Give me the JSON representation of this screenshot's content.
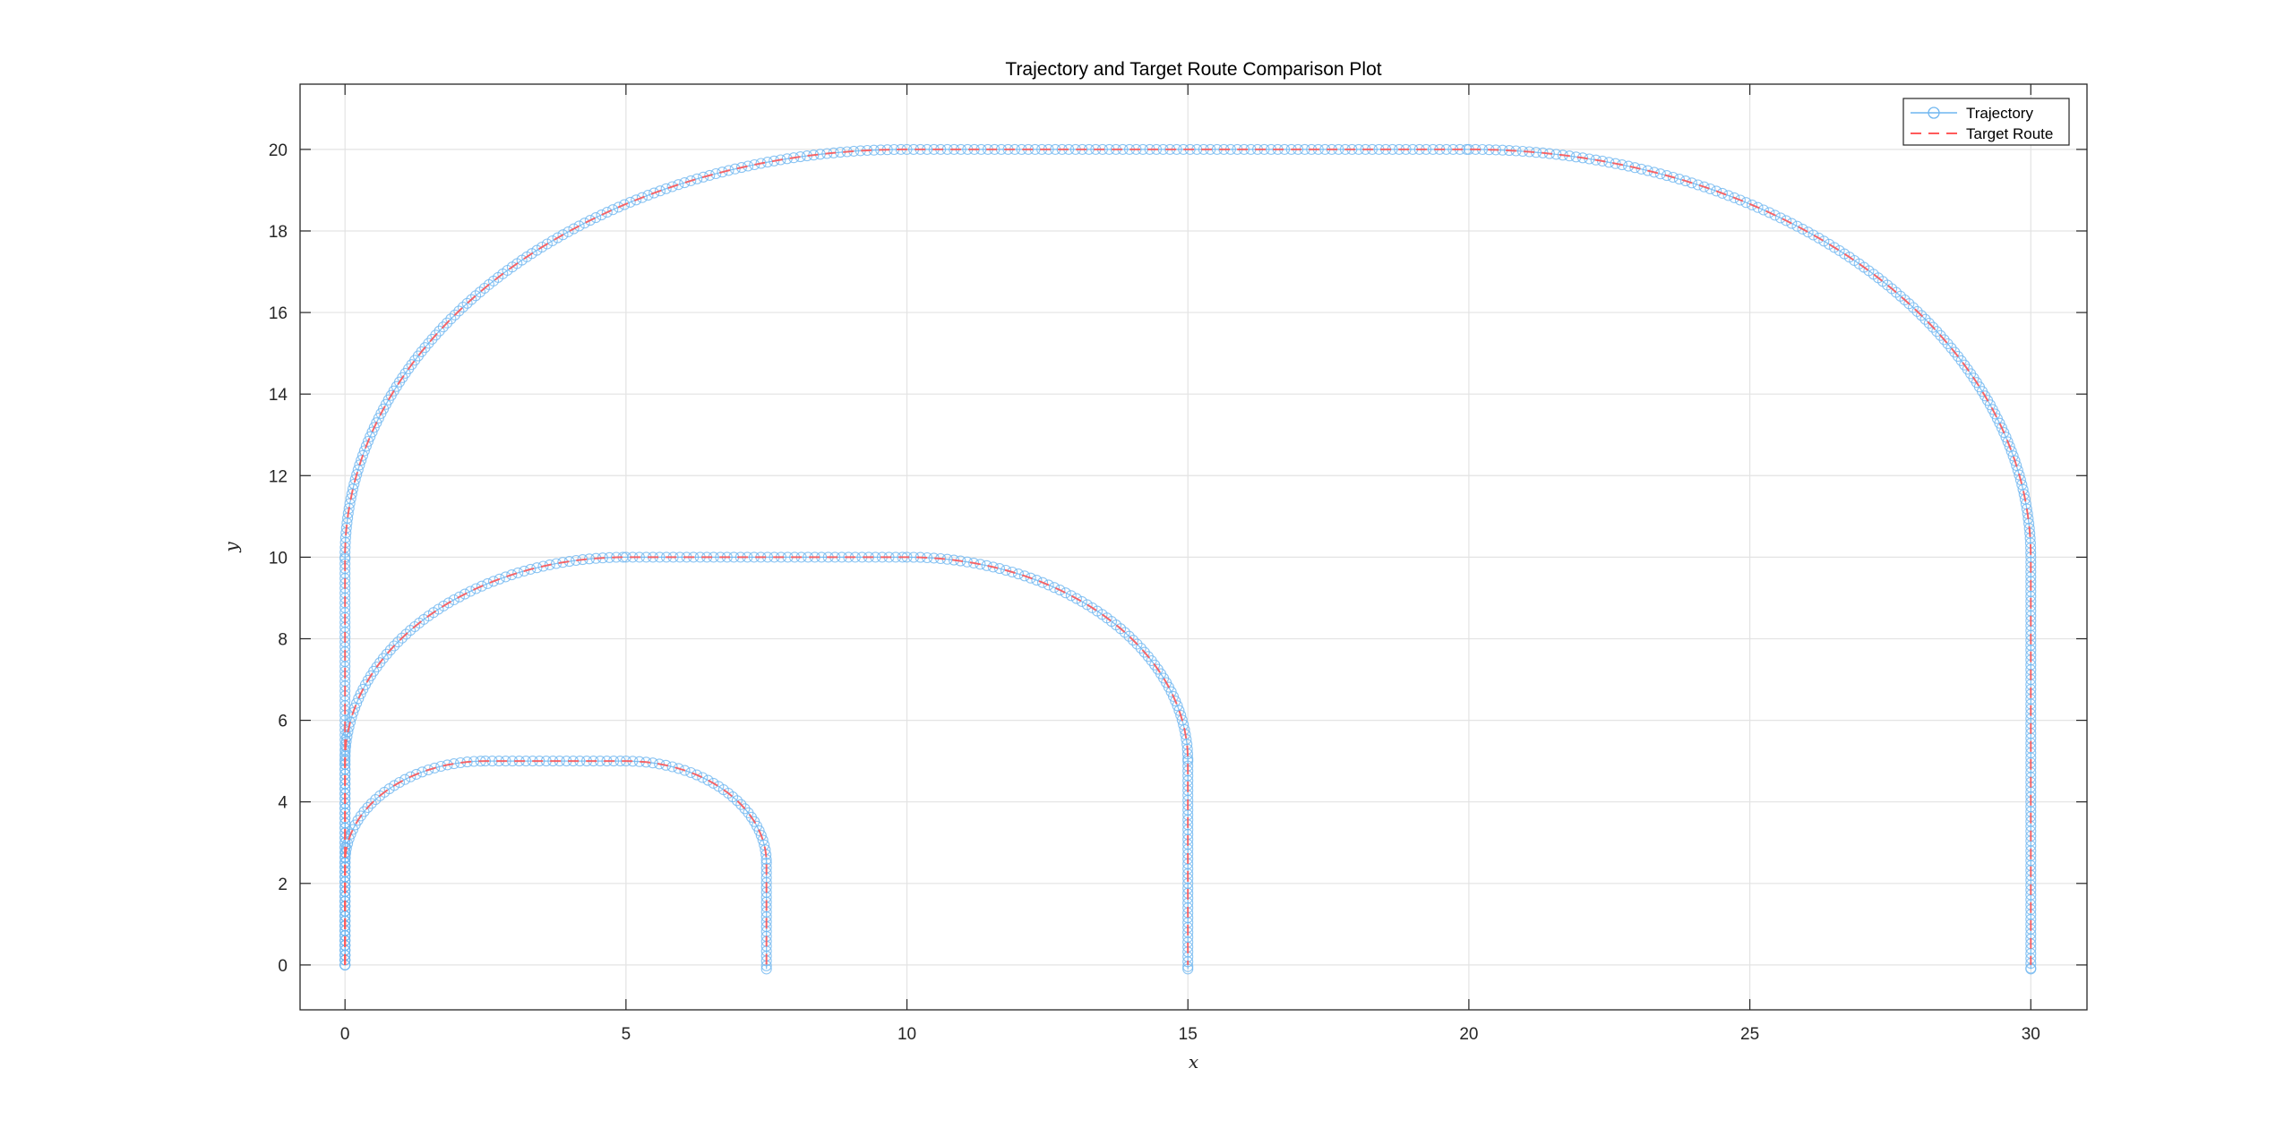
{
  "chart_data": {
    "type": "line",
    "title": "Trajectory and Target Route Comparison Plot",
    "xlabel": "x",
    "ylabel": "y",
    "xlim": [
      -0.8,
      31
    ],
    "ylim": [
      -1.1,
      21.6
    ],
    "xticks": [
      0,
      5,
      10,
      15,
      20,
      25,
      30
    ],
    "yticks": [
      0,
      2,
      4,
      6,
      8,
      10,
      12,
      14,
      16,
      18,
      20
    ],
    "grid": true,
    "legend_position": "top-right",
    "series": [
      {
        "name": "Trajectory",
        "style": "solid line with circle markers",
        "color": "#6fb6f0",
        "paths": [
          [
            [
              0,
              0
            ],
            [
              0,
              2.5
            ],
            [
              0.732,
              4.268
            ],
            [
              2.5,
              5
            ],
            [
              5,
              5
            ],
            [
              6.768,
              4.268
            ],
            [
              7.5,
              2.5
            ],
            [
              7.5,
              -0.1
            ]
          ],
          [
            [
              0,
              0
            ],
            [
              0,
              5
            ],
            [
              1.464,
              8.536
            ],
            [
              5,
              10
            ],
            [
              10,
              10
            ],
            [
              13.536,
              8.536
            ],
            [
              15,
              5
            ],
            [
              15,
              -0.1
            ]
          ],
          [
            [
              0,
              0
            ],
            [
              0,
              10
            ],
            [
              2.929,
              17.071
            ],
            [
              10,
              20
            ],
            [
              20,
              20
            ],
            [
              27.071,
              17.071
            ],
            [
              30,
              10
            ],
            [
              30,
              -0.1
            ]
          ]
        ]
      },
      {
        "name": "Target Route",
        "style": "dashed line",
        "color": "#ff5a5a",
        "paths": [
          [
            [
              0,
              0
            ],
            [
              0,
              2.5
            ],
            [
              0.732,
              4.268
            ],
            [
              2.5,
              5
            ],
            [
              5,
              5
            ],
            [
              6.768,
              4.268
            ],
            [
              7.5,
              2.5
            ],
            [
              7.5,
              0
            ]
          ],
          [
            [
              0,
              0
            ],
            [
              0,
              5
            ],
            [
              1.464,
              8.536
            ],
            [
              5,
              10
            ],
            [
              10,
              10
            ],
            [
              13.536,
              8.536
            ],
            [
              15,
              5
            ],
            [
              15,
              0
            ]
          ],
          [
            [
              0,
              0
            ],
            [
              0,
              10
            ],
            [
              2.929,
              17.071
            ],
            [
              10,
              20
            ],
            [
              20,
              20
            ],
            [
              27.071,
              17.071
            ],
            [
              30,
              10
            ],
            [
              30,
              0
            ]
          ]
        ]
      }
    ]
  }
}
